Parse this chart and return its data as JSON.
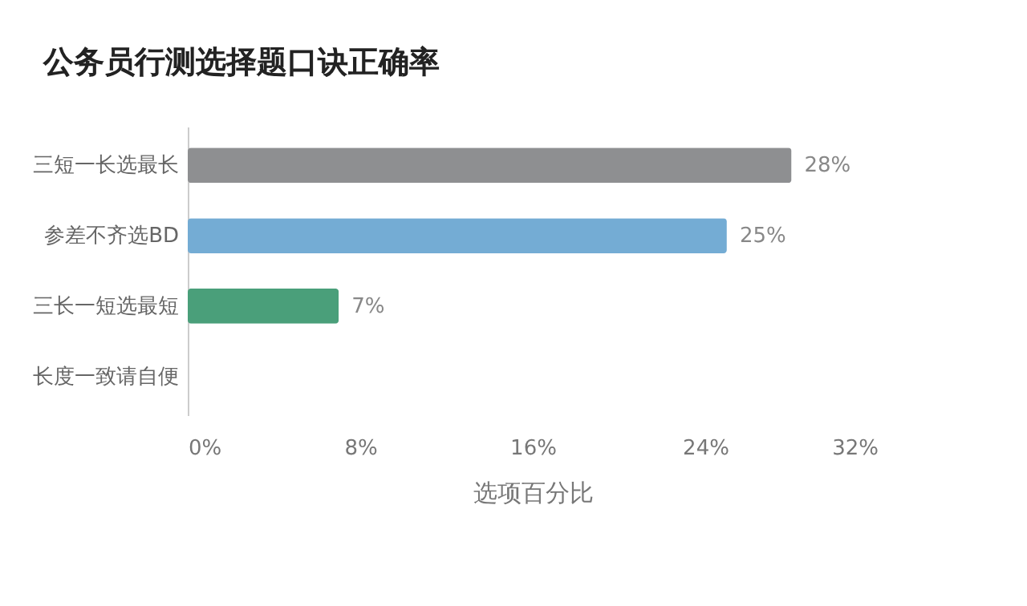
{
  "chart_data": {
    "type": "bar",
    "orientation": "horizontal",
    "title": "公务员行测选择题口诀正确率",
    "xlabel": "选项百分比",
    "categories": [
      "三短一长选最长",
      "参差不齐选BD",
      "三长一短选最短",
      "长度一致请自便"
    ],
    "values": [
      28,
      25,
      7,
      0
    ],
    "colors": [
      "#8e8f91",
      "#74acd4",
      "#4a9f7a",
      "#cccccc"
    ],
    "value_labels": [
      "28%",
      "25%",
      "7%",
      null
    ],
    "xlim": [
      0,
      32
    ],
    "xticks": [
      {
        "value": 0,
        "label": "0%"
      },
      {
        "value": 8,
        "label": "8%"
      },
      {
        "value": 16,
        "label": "16%"
      },
      {
        "value": 24,
        "label": "24%"
      },
      {
        "value": 32,
        "label": "32%"
      }
    ]
  }
}
